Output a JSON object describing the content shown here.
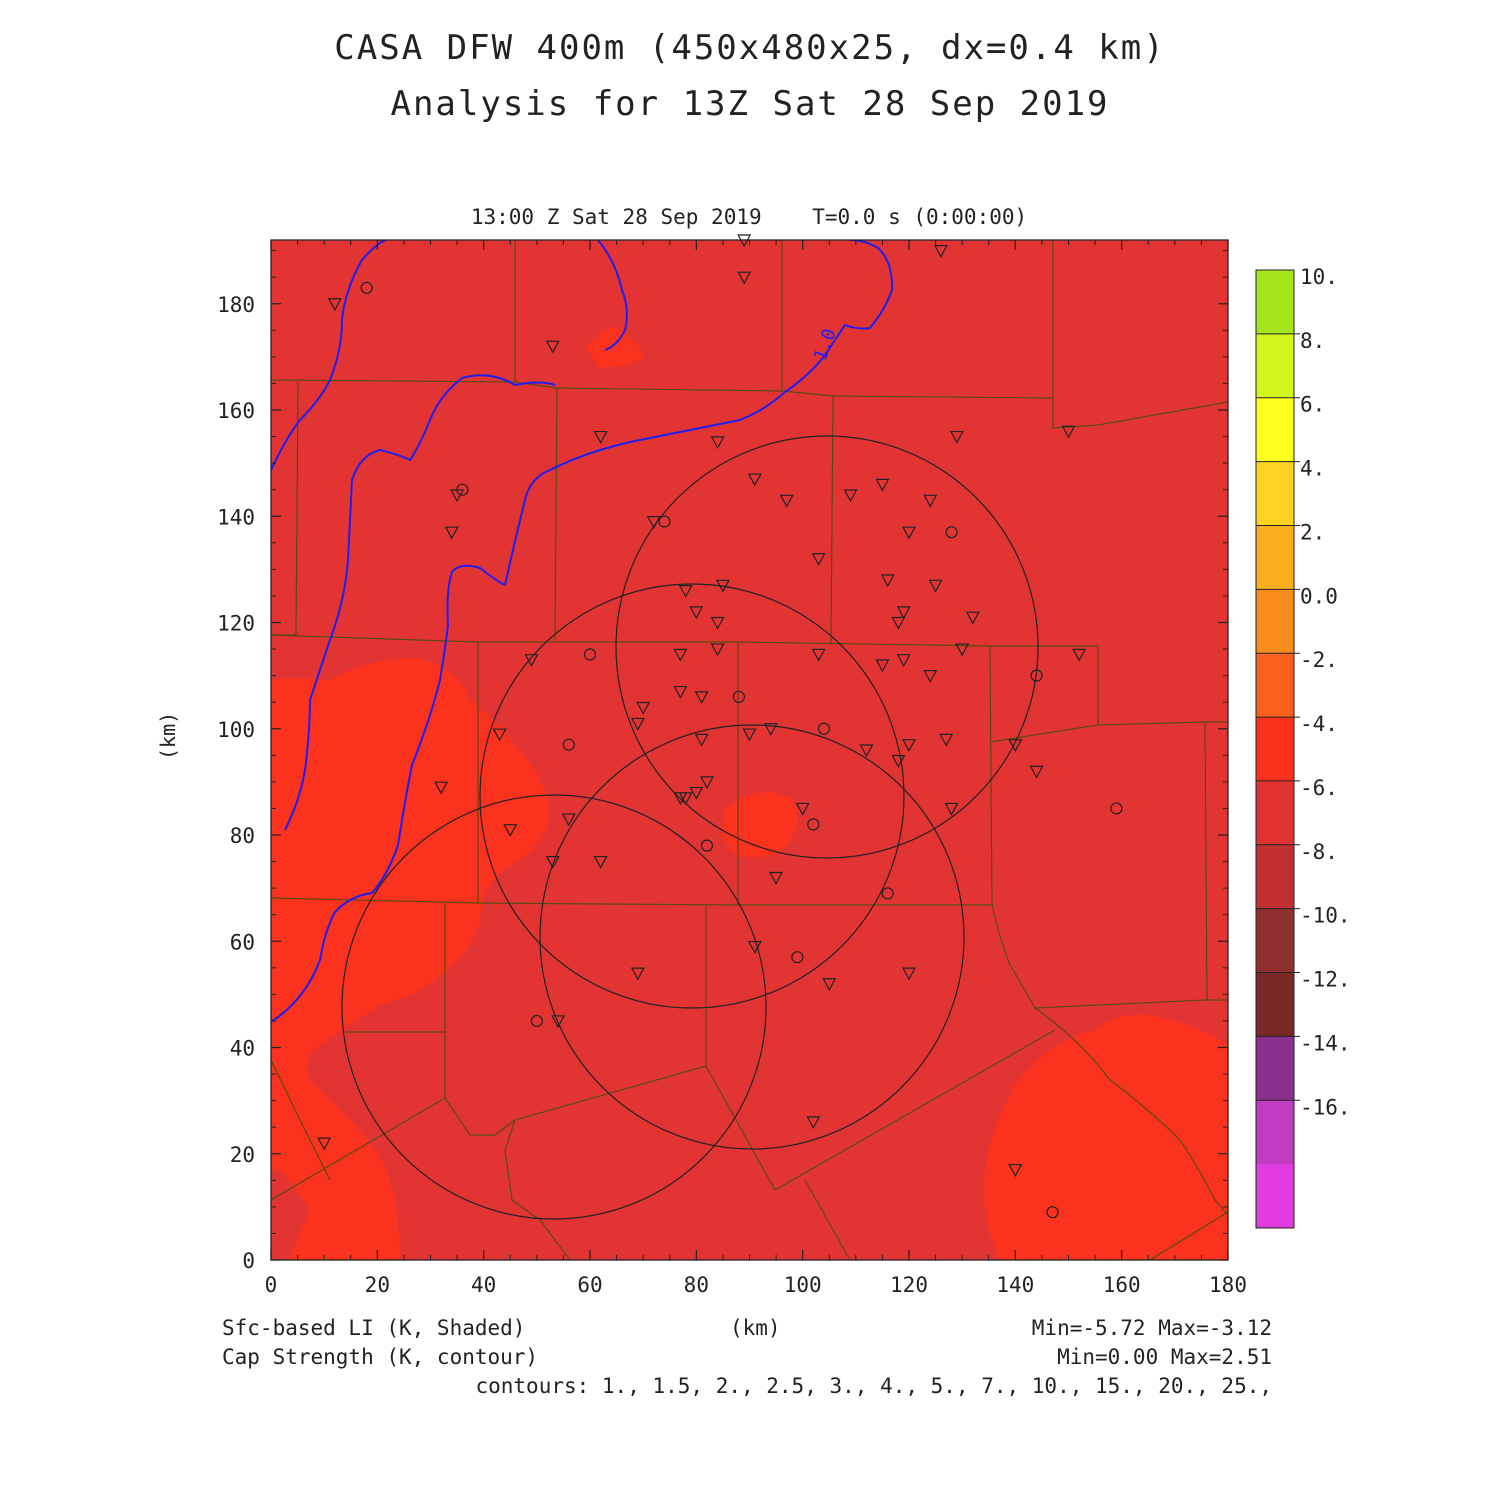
{
  "title": {
    "line1": "CASA DFW 400m (450x480x25, dx=0.4 km)",
    "line2": "Analysis for 13Z Sat 28 Sep 2019"
  },
  "plot_time": "13:00 Z Sat 28 Sep 2019    T=0.0 s (0:00:00)",
  "axes": {
    "xlabel": "(km)",
    "ylabel": "(km)",
    "x_ticks": [
      "0",
      "20",
      "40",
      "60",
      "80",
      "100",
      "120",
      "140",
      "160",
      "180"
    ],
    "y_ticks": [
      "0",
      "20",
      "40",
      "60",
      "80",
      "100",
      "120",
      "140",
      "160",
      "180"
    ],
    "xlim": [
      0,
      180
    ],
    "ylim": [
      0,
      192
    ]
  },
  "colorbar": {
    "labels": [
      "10.",
      "8.",
      "6.",
      "4.",
      "2.",
      "0.0",
      "-2.",
      "-4.",
      "-6.",
      "-8.",
      "-10.",
      "-12.",
      "-14.",
      "-16."
    ],
    "colors": [
      "#a6e51c",
      "#d2f51e",
      "#ffff1e",
      "#fdd220",
      "#fbaf1e",
      "#fa8c1e",
      "#f9601e",
      "#fa321c",
      "#e13232",
      "#c03030",
      "#8f3030",
      "#7a2828",
      "#8c3090",
      "#c03cc0",
      "#e03ce0"
    ]
  },
  "contour": {
    "label": "1.0",
    "color": "#1e1ef0"
  },
  "footer": {
    "left_line1": "Sfc-based LI (K, Shaded)",
    "left_line2": "Cap Strength (K, contour)",
    "xlabel": "(km)",
    "right_line1": "Min=-5.72 Max=-3.12",
    "right_line2": "Min=0.00 Max=2.51",
    "right_line3": "contours: 1., 1.5, 2., 2.5, 3., 4., 5., 7., 10., 15., 20., 25.,"
  },
  "field_colors": {
    "background": "#e33434",
    "warm_patch": "#fb321e",
    "county_lines": "#5b4a10",
    "radar_rings": "#222222",
    "station_markers": "#222222"
  },
  "stations": {
    "triangles": [
      [
        12,
        180
      ],
      [
        53,
        172
      ],
      [
        89,
        185
      ],
      [
        126,
        190
      ],
      [
        89,
        192
      ],
      [
        62,
        155
      ],
      [
        84,
        154
      ],
      [
        150,
        156
      ],
      [
        129,
        155
      ],
      [
        35,
        144
      ],
      [
        34,
        137
      ],
      [
        72,
        139
      ],
      [
        91,
        147
      ],
      [
        97,
        143
      ],
      [
        109,
        144
      ],
      [
        115,
        146
      ],
      [
        124,
        143
      ],
      [
        120,
        137
      ],
      [
        103,
        132
      ],
      [
        78,
        126
      ],
      [
        85,
        127
      ],
      [
        116,
        128
      ],
      [
        125,
        127
      ],
      [
        80,
        122
      ],
      [
        84,
        120
      ],
      [
        119,
        122
      ],
      [
        118,
        120
      ],
      [
        132,
        121
      ],
      [
        84,
        115
      ],
      [
        49,
        113
      ],
      [
        77,
        114
      ],
      [
        103,
        114
      ],
      [
        115,
        112
      ],
      [
        119,
        113
      ],
      [
        124,
        110
      ],
      [
        130,
        115
      ],
      [
        152,
        114
      ],
      [
        77,
        107
      ],
      [
        81,
        106
      ],
      [
        70,
        104
      ],
      [
        69,
        101
      ],
      [
        43,
        99
      ],
      [
        81,
        98
      ],
      [
        90,
        99
      ],
      [
        94,
        100
      ],
      [
        112,
        96
      ],
      [
        118,
        94
      ],
      [
        120,
        97
      ],
      [
        127,
        98
      ],
      [
        140,
        97
      ],
      [
        144,
        92
      ],
      [
        32,
        89
      ],
      [
        77,
        87
      ],
      [
        78,
        87
      ],
      [
        80,
        88
      ],
      [
        82,
        90
      ],
      [
        45,
        81
      ],
      [
        56,
        83
      ],
      [
        100,
        85
      ],
      [
        128,
        85
      ],
      [
        53,
        75
      ],
      [
        62,
        75
      ],
      [
        95,
        72
      ],
      [
        91,
        59
      ],
      [
        69,
        54
      ],
      [
        105,
        52
      ],
      [
        120,
        54
      ],
      [
        54,
        45
      ],
      [
        102,
        26
      ],
      [
        10,
        22
      ],
      [
        140,
        17
      ]
    ],
    "circles": [
      [
        18,
        183
      ],
      [
        36,
        145
      ],
      [
        74,
        139
      ],
      [
        128,
        137
      ],
      [
        60,
        114
      ],
      [
        88,
        106
      ],
      [
        104,
        100
      ],
      [
        56,
        97
      ],
      [
        144,
        110
      ],
      [
        159,
        85
      ],
      [
        102,
        82
      ],
      [
        82,
        78
      ],
      [
        116,
        69
      ],
      [
        99,
        57
      ],
      [
        50,
        45
      ],
      [
        147,
        9
      ]
    ]
  }
}
